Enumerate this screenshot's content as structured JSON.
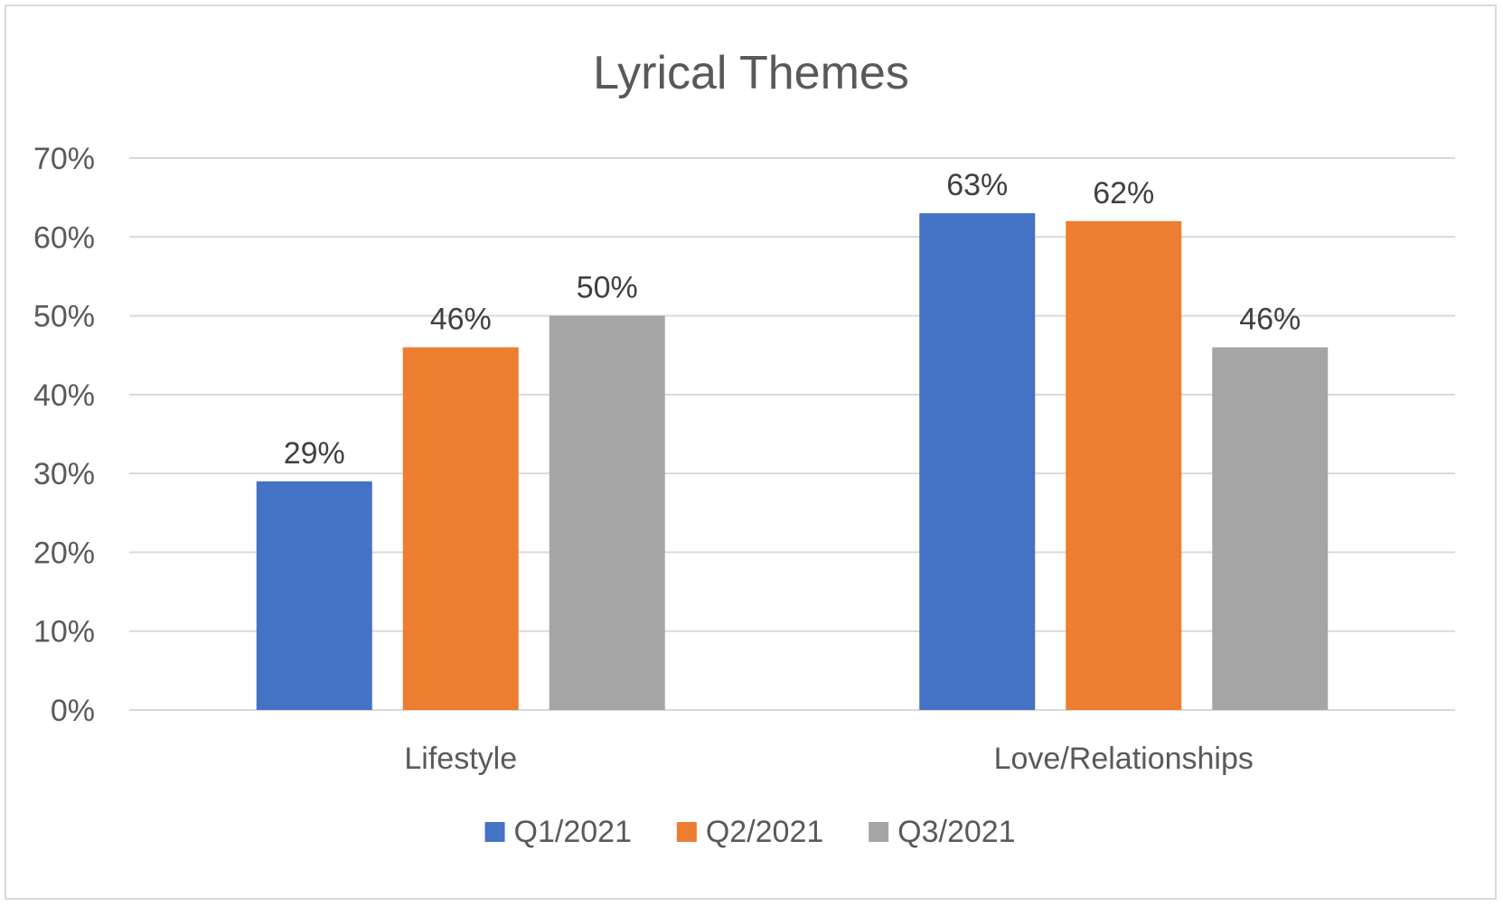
{
  "chart_data": {
    "type": "bar",
    "title": "Lyrical Themes",
    "xlabel": "",
    "ylabel": "",
    "ylim": [
      0,
      0.7
    ],
    "y_ticks": [
      0,
      0.1,
      0.2,
      0.3,
      0.4,
      0.5,
      0.6,
      0.7
    ],
    "y_tick_labels": [
      "0%",
      "10%",
      "20%",
      "30%",
      "40%",
      "50%",
      "60%",
      "70%"
    ],
    "categories": [
      "Lifestyle",
      "Love/Relationships"
    ],
    "series": [
      {
        "name": "Q1/2021",
        "color": "#4472c4",
        "values": [
          0.29,
          0.63
        ],
        "labels": [
          "29%",
          "63%"
        ]
      },
      {
        "name": "Q2/2021",
        "color": "#ed7d31",
        "values": [
          0.46,
          0.62
        ],
        "labels": [
          "46%",
          "62%"
        ]
      },
      {
        "name": "Q3/2021",
        "color": "#a5a5a5",
        "values": [
          0.5,
          0.46
        ],
        "labels": [
          "50%",
          "46%"
        ]
      }
    ],
    "grid": true,
    "legend": "bottom"
  }
}
